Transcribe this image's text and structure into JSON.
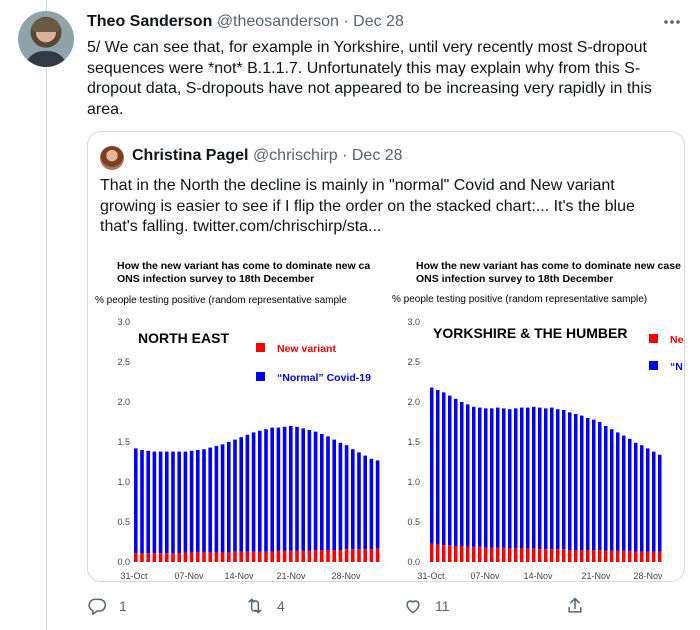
{
  "tweet": {
    "author_name": "Theo Sanderson",
    "author_handle": "@theosanderson",
    "separator": "·",
    "date": "Dec 28",
    "more_icon": "more-horizontal-icon",
    "text": "5/ We can see that, for example in Yorkshire, until very recently most S-dropout sequences were *not* B.1.1.7. Unfortunately this may explain why from this S-dropout data, S-dropouts have not appeared to be increasing very rapidly in this area."
  },
  "quote": {
    "author_name": "Christina Pagel",
    "author_handle": "@chrischirp",
    "separator": "·",
    "date": "Dec 28",
    "text": "That in the North the decline is mainly in \"normal\" Covid and New variant growing is easier to see if I flip the order on the stacked chart:... It's the blue that's falling.  twitter.com/chrischirp/sta..."
  },
  "actions": {
    "reply_count": "1",
    "retweet_count": "4",
    "like_count": "11",
    "icons": [
      "reply-icon",
      "retweet-icon",
      "like-icon",
      "share-icon"
    ]
  },
  "colors": {
    "new_variant": "#ff0000",
    "normal_covid": "#0000ff",
    "muted_text": "#536471",
    "border": "#cfd9de"
  },
  "chart_data": [
    {
      "type": "bar",
      "stacked": true,
      "title_line1": "How the new variant has come to dominate new ca",
      "title_line2": "ONS infection survey to 18th December",
      "ylabel": "% people testing positive (random representative sample",
      "region": "NORTH EAST",
      "legend": [
        "New variant",
        "“Normal” Covid-19"
      ],
      "ylim": [
        0,
        3.0
      ],
      "yticks": [
        "0.0",
        "0.5",
        "1.0",
        "1.5",
        "2.0",
        "2.5",
        "3.0"
      ],
      "xticks": [
        "31-Oct",
        "07-Nov",
        "14-Nov",
        "21-Nov",
        "28-Nov"
      ],
      "series": [
        {
          "name": "New variant",
          "values": [
            0.11,
            0.11,
            0.11,
            0.11,
            0.11,
            0.11,
            0.11,
            0.11,
            0.12,
            0.12,
            0.12,
            0.12,
            0.12,
            0.12,
            0.12,
            0.12,
            0.13,
            0.13,
            0.13,
            0.13,
            0.13,
            0.13,
            0.13,
            0.14,
            0.14,
            0.14,
            0.14,
            0.14,
            0.14,
            0.15,
            0.15,
            0.15,
            0.15,
            0.15,
            0.16,
            0.16,
            0.16,
            0.16,
            0.16,
            0.17,
            0.17
          ]
        },
        {
          "name": "“Normal” Covid-19",
          "values": [
            1.31,
            1.29,
            1.28,
            1.27,
            1.27,
            1.27,
            1.27,
            1.27,
            1.26,
            1.27,
            1.28,
            1.29,
            1.31,
            1.33,
            1.35,
            1.38,
            1.4,
            1.43,
            1.46,
            1.49,
            1.51,
            1.53,
            1.55,
            1.54,
            1.55,
            1.56,
            1.55,
            1.53,
            1.51,
            1.48,
            1.45,
            1.42,
            1.38,
            1.34,
            1.3,
            1.25,
            1.21,
            1.17,
            1.13,
            1.1,
            1.07
          ]
        }
      ]
    },
    {
      "type": "bar",
      "stacked": true,
      "title_line1": "How the new variant has come to dominate new case",
      "title_line2": "ONS infection survey to 18th December",
      "ylabel": "% people testing positive (random representative sample)",
      "region": "YORKSHIRE & THE HUMBER",
      "legend": [
        "Ne",
        "“N"
      ],
      "ylim": [
        0,
        3.0
      ],
      "yticks": [
        "0.0",
        "0.5",
        "1.0",
        "1.5",
        "2.0",
        "2.5",
        "3.0"
      ],
      "xticks": [
        "31-Oct",
        "07-Nov",
        "14-Nov",
        "21-Nov",
        "28-Nov"
      ],
      "series": [
        {
          "name": "New variant",
          "values": [
            0.23,
            0.22,
            0.21,
            0.21,
            0.2,
            0.2,
            0.19,
            0.19,
            0.19,
            0.18,
            0.18,
            0.18,
            0.18,
            0.17,
            0.17,
            0.17,
            0.17,
            0.17,
            0.16,
            0.16,
            0.16,
            0.16,
            0.16,
            0.15,
            0.15,
            0.15,
            0.15,
            0.15,
            0.15,
            0.14,
            0.14,
            0.14,
            0.14,
            0.14,
            0.13,
            0.13,
            0.13,
            0.13,
            0.13
          ]
        },
        {
          "name": "“Normal” Covid-19",
          "values": [
            1.95,
            1.93,
            1.91,
            1.87,
            1.84,
            1.8,
            1.78,
            1.75,
            1.74,
            1.74,
            1.74,
            1.75,
            1.74,
            1.74,
            1.75,
            1.76,
            1.76,
            1.77,
            1.77,
            1.76,
            1.77,
            1.75,
            1.74,
            1.72,
            1.7,
            1.68,
            1.65,
            1.63,
            1.6,
            1.56,
            1.52,
            1.48,
            1.44,
            1.4,
            1.36,
            1.33,
            1.29,
            1.25,
            1.21
          ]
        }
      ]
    }
  ]
}
